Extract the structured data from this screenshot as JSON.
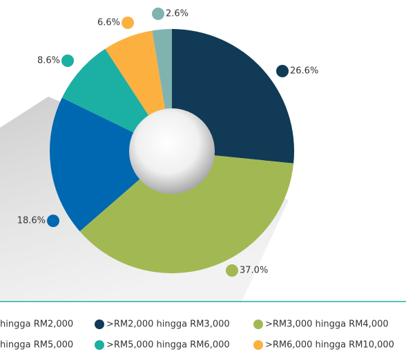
{
  "chart_data": {
    "type": "pie",
    "categories": [
      "hingga RM2,000",
      ">RM2,000 hingga RM3,000",
      ">RM3,000 hingga RM4,000",
      "hingga RM5,000",
      ">RM5,000 hingga RM6,000",
      ">RM6,000 hingga RM10,000"
    ],
    "values": [
      2.6,
      26.6,
      37.0,
      18.6,
      8.6,
      6.6
    ],
    "value_labels": [
      "2.6%",
      "26.6%",
      "37.0%",
      "18.6%",
      "8.6%",
      "6.6%"
    ],
    "colors": [
      "#80b3b0",
      "#103a56",
      "#a2b953",
      "#0067b1",
      "#1bb0a3",
      "#fbb040"
    ],
    "legend": "bottom"
  }
}
